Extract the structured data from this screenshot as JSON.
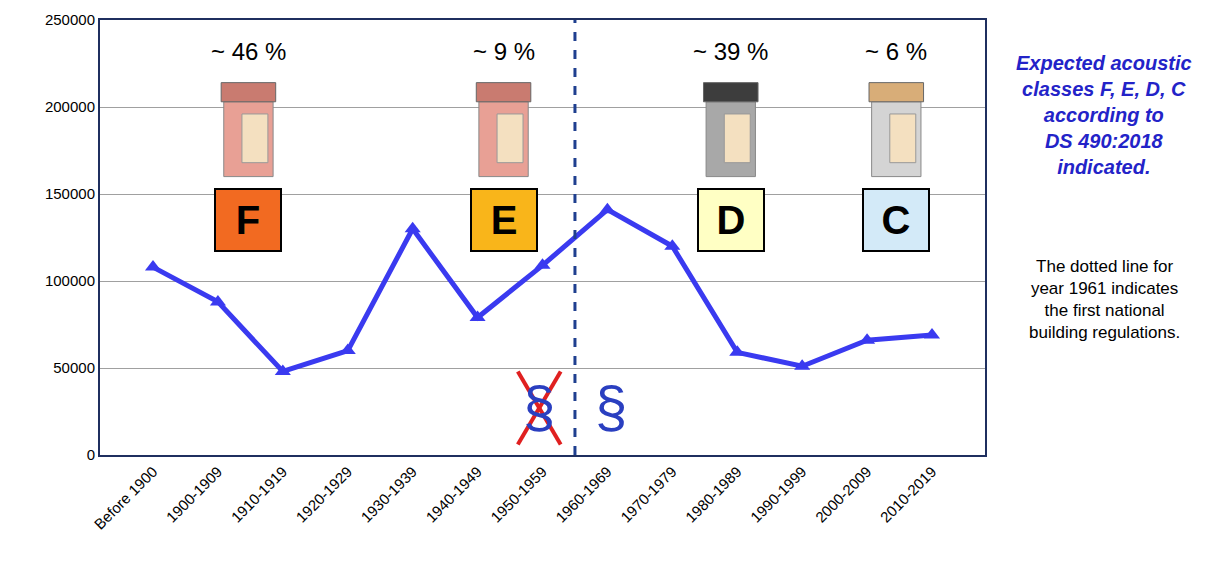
{
  "chart_data": {
    "type": "line",
    "categories": [
      "Before 1900",
      "1900-1909",
      "1910-1919",
      "1920-1929",
      "1930-1939",
      "1940-1949",
      "1950-1959",
      "1960-1969",
      "1970-1979",
      "1980-1989",
      "1990-1999",
      "2000-2009",
      "2010-2019"
    ],
    "values": [
      108000,
      88000,
      48000,
      60000,
      130000,
      79000,
      109000,
      141000,
      120000,
      59000,
      51000,
      66000,
      69000
    ],
    "color": "#3a3af0",
    "marker": "triangle-up",
    "ylim": [
      0,
      250000
    ],
    "yticks": [
      0,
      50000,
      100000,
      150000,
      200000,
      250000
    ],
    "grid": true,
    "classes": [
      {
        "share": "~ 46 %",
        "label": "F",
        "color": "#f26a21"
      },
      {
        "share": "~ 9 %",
        "label": "E",
        "color": "#f9b51a"
      },
      {
        "share": "~ 39 %",
        "label": "D",
        "color": "#ffffc4"
      },
      {
        "share": "~ 6 %",
        "label": "C",
        "color": "#d3eaf8"
      }
    ],
    "symbols": [
      "§",
      "§"
    ],
    "notes": [
      [
        "Expected acoustic",
        "classes F, E, D, C",
        "according to",
        "DS 490:2018",
        "indicated."
      ],
      [
        "The dotted line for",
        "year 1961 indicates",
        "the first national",
        "building regulations."
      ]
    ]
  }
}
